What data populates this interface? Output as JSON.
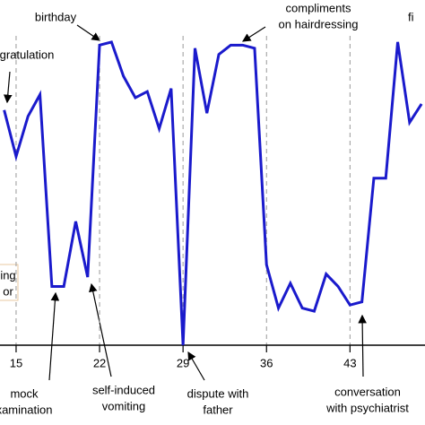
{
  "chart_data": {
    "type": "line",
    "x": [
      14,
      15,
      16,
      17,
      18,
      19,
      20,
      21,
      22,
      23,
      24,
      25,
      26,
      27,
      28,
      29,
      30,
      31,
      32,
      33,
      34,
      35,
      36,
      37,
      38,
      39,
      40,
      41,
      42,
      43,
      44,
      45,
      46,
      47,
      48,
      49
    ],
    "values": [
      76,
      61,
      74,
      81,
      19,
      19,
      40,
      22,
      97,
      98,
      87,
      80,
      82,
      70,
      83,
      0,
      96,
      75,
      94,
      97,
      97,
      96,
      26,
      12,
      20,
      12,
      11,
      23,
      19,
      13,
      14,
      54,
      54,
      98,
      72,
      78
    ],
    "color": "#1a1acc",
    "xlim": [
      13.65,
      49.29
    ],
    "xticks": [
      15,
      22,
      29,
      36,
      43
    ],
    "ylim": [
      0,
      100
    ],
    "grid": true,
    "annotations": [
      [
        "birthday"
      ],
      [
        "compliments",
        "on hairdressing"
      ],
      [
        "gratulation"
      ],
      [
        "ing",
        "or"
      ],
      [
        "mock",
        "xamination"
      ],
      [
        "self-induced",
        "vomiting"
      ],
      [
        "dispute with",
        "father"
      ],
      [
        "conversation",
        "with psychiatrist"
      ],
      [
        "fi"
      ]
    ]
  }
}
